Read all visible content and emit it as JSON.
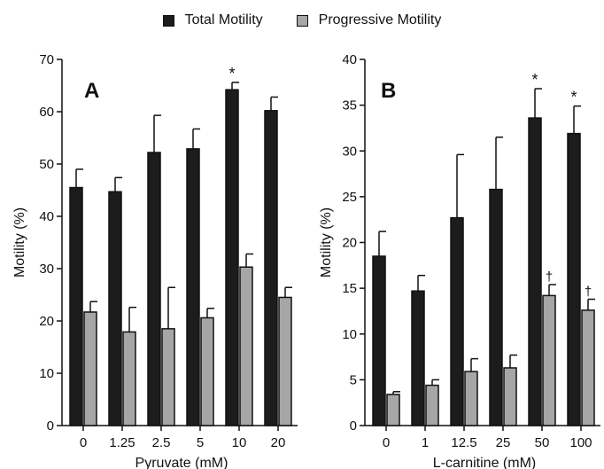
{
  "legend": {
    "total_label": "Total Motility",
    "progressive_label": "Progressive Motility",
    "total_color": "#1c1c1c",
    "progressive_color": "#a6a6a6"
  },
  "chart_data": [
    {
      "type": "bar",
      "panel_label": "A",
      "xlabel": "Pyruvate (mM)",
      "ylabel": "Motility (%)",
      "ylim": [
        0,
        70
      ],
      "yticks": [
        0,
        10,
        20,
        30,
        40,
        50,
        60,
        70
      ],
      "categories": [
        "0",
        "1.25",
        "2.5",
        "5",
        "10",
        "20"
      ],
      "series": [
        {
          "name": "Total Motility",
          "values": [
            45.5,
            44.7,
            52.2,
            52.9,
            64.2,
            60.2
          ],
          "errors": [
            3.5,
            2.7,
            7.1,
            3.8,
            1.4,
            2.6
          ]
        },
        {
          "name": "Progressive Motility",
          "values": [
            21.7,
            17.9,
            18.5,
            20.6,
            30.3,
            24.5
          ],
          "errors": [
            2.0,
            4.7,
            7.9,
            1.8,
            2.5,
            1.9
          ]
        }
      ],
      "annotations": [
        {
          "category": "10",
          "series": "Total Motility",
          "text": "*"
        }
      ]
    },
    {
      "type": "bar",
      "panel_label": "B",
      "xlabel": "L-carnitine (mM)",
      "ylabel": "Motility (%)",
      "ylim": [
        0,
        40
      ],
      "yticks": [
        0,
        5,
        10,
        15,
        20,
        25,
        30,
        35,
        40
      ],
      "categories": [
        "0",
        "1",
        "12.5",
        "25",
        "50",
        "100"
      ],
      "series": [
        {
          "name": "Total Motility",
          "values": [
            18.5,
            14.7,
            22.7,
            25.8,
            33.6,
            31.9
          ],
          "errors": [
            2.7,
            1.7,
            6.9,
            5.7,
            3.2,
            3.0
          ]
        },
        {
          "name": "Progressive Motility",
          "values": [
            3.4,
            4.4,
            5.9,
            6.3,
            14.2,
            12.6
          ],
          "errors": [
            0.3,
            0.6,
            1.4,
            1.4,
            1.2,
            1.2
          ]
        }
      ],
      "annotations": [
        {
          "category": "50",
          "series": "Total Motility",
          "text": "*"
        },
        {
          "category": "100",
          "series": "Total Motility",
          "text": "*"
        },
        {
          "category": "50",
          "series": "Progressive Motility",
          "text": "†"
        },
        {
          "category": "100",
          "series": "Progressive Motility",
          "text": "†"
        }
      ]
    }
  ]
}
